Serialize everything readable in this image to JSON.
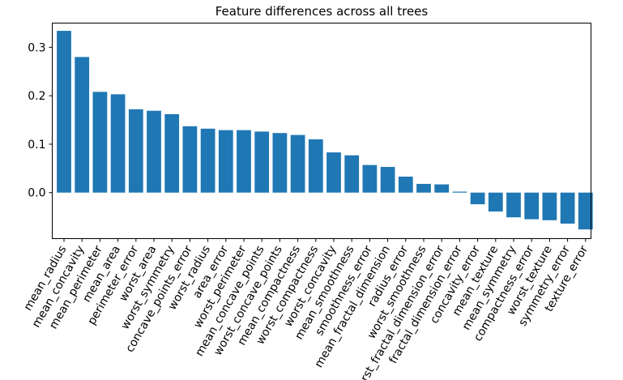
{
  "chart_data": {
    "type": "bar",
    "title": "Feature differences across all trees",
    "xlabel": "",
    "ylabel": "",
    "ylim": [
      -0.095,
      0.35
    ],
    "yticks": [
      0.0,
      0.1,
      0.2,
      0.3
    ],
    "ytick_labels": [
      "0.0",
      "0.1",
      "0.2",
      "0.3"
    ],
    "grid": false,
    "bar_color": "#1f77b4",
    "categories": [
      "mean_radius",
      "mean_concavity",
      "mean_perimeter",
      "mean_area",
      "perimeter_error",
      "worst_area",
      "worst_symmetry",
      "concave_points_error",
      "worst_radius",
      "area_error",
      "worst_perimeter",
      "mean_concave_points",
      "worst_concave_points",
      "mean_compactness",
      "worst_compactness",
      "worst_concavity",
      "mean_smoothness",
      "smoothness_error",
      "mean_fractal_dimension",
      "radius_error",
      "worst_smoothness",
      "worst_fractal_dimension_error",
      "fractal_dimension_error",
      "concavity_error",
      "mean_texture",
      "mean_symmetry",
      "compactness_error",
      "worst_texture",
      "symmetry_error",
      "texture_error"
    ],
    "values": [
      0.334,
      0.28,
      0.208,
      0.203,
      0.172,
      0.169,
      0.162,
      0.137,
      0.132,
      0.129,
      0.129,
      0.126,
      0.123,
      0.119,
      0.11,
      0.083,
      0.077,
      0.057,
      0.053,
      0.033,
      0.018,
      0.017,
      0.002,
      -0.024,
      -0.039,
      -0.051,
      -0.055,
      -0.057,
      -0.064,
      -0.076
    ]
  }
}
